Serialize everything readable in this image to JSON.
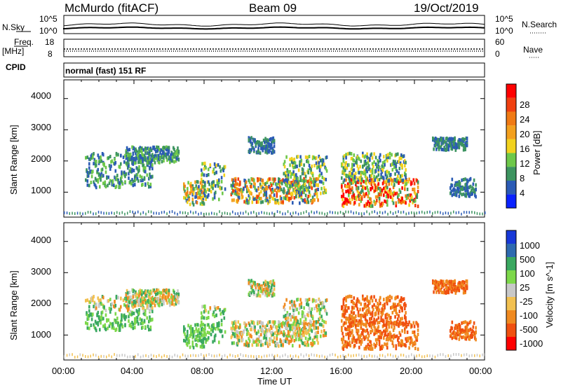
{
  "header": {
    "station": "McMurdo (fitACF)",
    "beam": "Beam 09",
    "date": "19/Oct/2019"
  },
  "sky_panel": {
    "left_label": "N.Sky",
    "right_label": "N.Search",
    "left_ticks": [
      "10^5",
      "10^0"
    ],
    "right_ticks": [
      "10^5",
      "10^0"
    ]
  },
  "freq_panel": {
    "left_label_1": "Freq.",
    "left_label_2": "[MHz]",
    "right_label": "Nave",
    "left_ticks": [
      "18",
      "8"
    ],
    "right_ticks": [
      "60",
      "0"
    ]
  },
  "cpid": {
    "label": "CPID",
    "mode": "normal (fast) 151 RF"
  },
  "colors": {
    "power": [
      "#0a22ff",
      "#2b5bb5",
      "#3d9460",
      "#6ec84a",
      "#f2d21e",
      "#f3a01e",
      "#f07a14",
      "#f04010",
      "#ff0000"
    ],
    "velocity": [
      "#ff0000",
      "#f05010",
      "#f08a20",
      "#f2c050",
      "#c8c8c8",
      "#7dd84a",
      "#3aa860",
      "#2e6ab0",
      "#1838d8"
    ]
  },
  "chart_data": [
    {
      "type": "heatmap",
      "name": "power",
      "ylabel": "Slant Range [km]",
      "y_ticks": [
        "1000",
        "2000",
        "3000",
        "4000"
      ],
      "ylim": [
        200,
        4600
      ],
      "xlim": [
        0,
        24
      ],
      "colorbar_label": "Power [dB]",
      "colorbar_ticks": [
        "4",
        "8",
        "12",
        "16",
        "20",
        "24",
        "28"
      ],
      "colorbar_range": [
        0,
        30
      ]
    },
    {
      "type": "heatmap",
      "name": "velocity",
      "xlabel": "Time UT",
      "x_ticks": [
        "00:00",
        "04:00",
        "08:00",
        "12:00",
        "16:00",
        "20:00",
        "00:00"
      ],
      "ylabel": "Slant Range [km]",
      "y_ticks": [
        "1000",
        "2000",
        "3000",
        "4000"
      ],
      "ylim": [
        200,
        4600
      ],
      "xlim": [
        0,
        24
      ],
      "colorbar_label": "Velocity [m s^-1]",
      "colorbar_ticks": [
        "1000",
        "500",
        "100",
        "25",
        "-25",
        "-100",
        "-500",
        "-1000"
      ]
    }
  ]
}
